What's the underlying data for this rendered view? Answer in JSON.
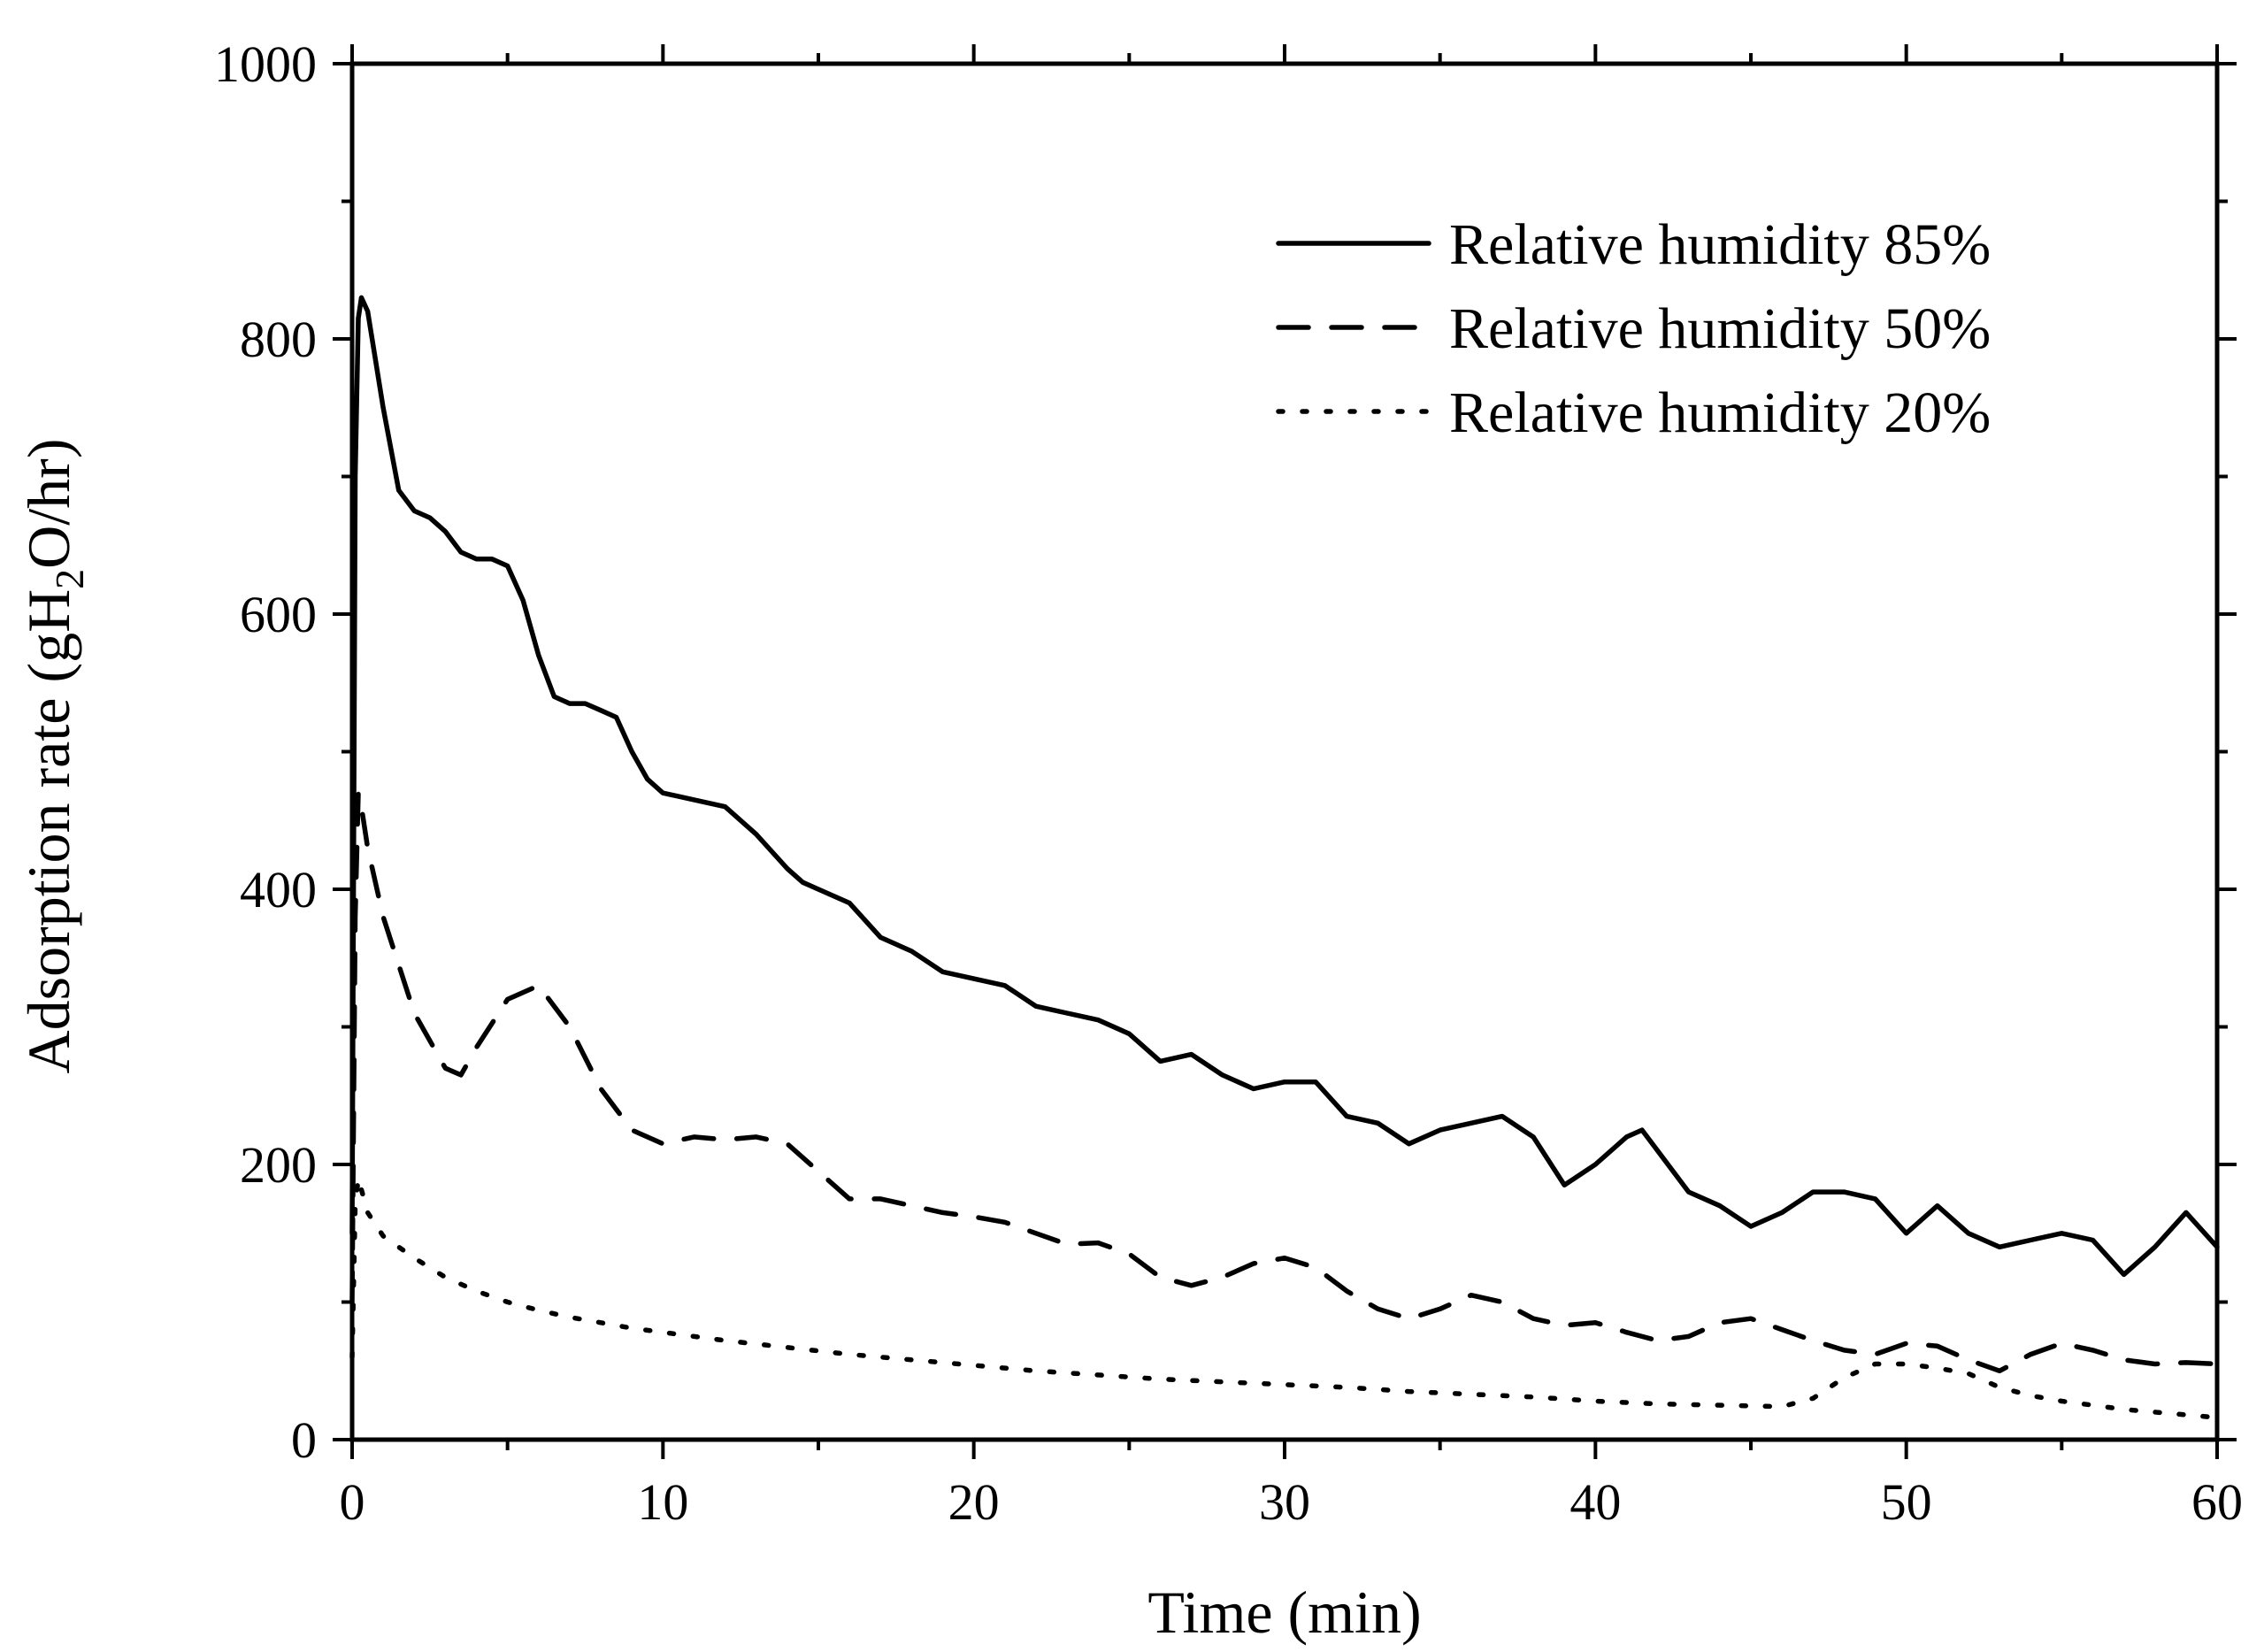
{
  "chart_data": {
    "type": "line",
    "title": "",
    "xlabel": "Time (min)",
    "ylabel": "Adsorption rate (gH2O/hr)",
    "ylabel_parts": {
      "prefix": "Adsorption rate (gH",
      "subscript": "2",
      "suffix": "O/hr)"
    },
    "xlim": [
      0,
      60
    ],
    "ylim": [
      0,
      1000
    ],
    "xticks": [
      0,
      10,
      20,
      30,
      40,
      50,
      60
    ],
    "yticks": [
      0,
      200,
      400,
      600,
      800,
      1000
    ],
    "xtick_labels": [
      "0",
      "10",
      "20",
      "30",
      "40",
      "50",
      "60"
    ],
    "ytick_labels": [
      "0",
      "200",
      "400",
      "600",
      "800",
      "1000"
    ],
    "grid": false,
    "legend_position": "top-right",
    "color": "#000000",
    "series": [
      {
        "name": "Relative humidity 85%",
        "style": "solid",
        "x": [
          0,
          0.1,
          0.2,
          0.3,
          0.5,
          1,
          1.5,
          2,
          2.5,
          3,
          3.5,
          4,
          4.5,
          5,
          5.5,
          6,
          6.5,
          7,
          7.5,
          8,
          8.5,
          9,
          9.5,
          10,
          11,
          12,
          13,
          14,
          14.5,
          15,
          16,
          17,
          18,
          19,
          20,
          21,
          22,
          23,
          24,
          25,
          26,
          27,
          28,
          29,
          30,
          31,
          32,
          33,
          34,
          35,
          36,
          37,
          38,
          39,
          40,
          41,
          41.5,
          42,
          43,
          44,
          45,
          46,
          47,
          48,
          49,
          50,
          51,
          52,
          53,
          54,
          55,
          56,
          57,
          58,
          59,
          60
        ],
        "values": [
          150,
          700,
          815,
          830,
          820,
          750,
          690,
          675,
          670,
          660,
          645,
          640,
          640,
          635,
          610,
          570,
          540,
          535,
          535,
          530,
          525,
          500,
          480,
          470,
          465,
          460,
          440,
          415,
          405,
          400,
          390,
          365,
          355,
          340,
          335,
          330,
          315,
          310,
          305,
          295,
          275,
          280,
          265,
          255,
          260,
          260,
          235,
          230,
          215,
          225,
          230,
          235,
          220,
          185,
          200,
          220,
          225,
          210,
          180,
          170,
          155,
          165,
          180,
          180,
          175,
          150,
          170,
          150,
          140,
          145,
          150,
          145,
          120,
          140,
          165,
          140
        ]
      },
      {
        "name": "Relative humidity 50%",
        "style": "dashed",
        "x": [
          0,
          0.1,
          0.2,
          0.3,
          0.5,
          1,
          2,
          3,
          3.5,
          4,
          5,
          6,
          7,
          8,
          9,
          10,
          11,
          12,
          13,
          14,
          15,
          16,
          17,
          18,
          19,
          20,
          21,
          22,
          23,
          24,
          25,
          26,
          27,
          28,
          29,
          30,
          31,
          32,
          33,
          34,
          35,
          36,
          37,
          38,
          39,
          40,
          41,
          42,
          43,
          44,
          45,
          46,
          47,
          48,
          49,
          50,
          51,
          52,
          53,
          54,
          55,
          56,
          57,
          58,
          59,
          60
        ],
        "values": [
          100,
          380,
          470,
          460,
          430,
          380,
          310,
          270,
          265,
          285,
          320,
          330,
          300,
          255,
          225,
          215,
          220,
          218,
          220,
          215,
          195,
          175,
          175,
          170,
          165,
          162,
          158,
          150,
          142,
          143,
          135,
          118,
          112,
          118,
          128,
          132,
          125,
          108,
          95,
          88,
          95,
          105,
          100,
          88,
          83,
          85,
          78,
          72,
          75,
          85,
          88,
          80,
          72,
          65,
          62,
          70,
          68,
          58,
          50,
          62,
          70,
          65,
          58,
          55,
          56,
          55
        ]
      },
      {
        "name": "Relative humidity 20%",
        "style": "dotted",
        "x": [
          0,
          0.1,
          0.2,
          0.5,
          1,
          2,
          3,
          4,
          5,
          6,
          7,
          8,
          9,
          10,
          12,
          14,
          16,
          18,
          20,
          22,
          24,
          26,
          28,
          30,
          32,
          34,
          36,
          38,
          40,
          42,
          44,
          46,
          47,
          48,
          49,
          50,
          51,
          52,
          53,
          54,
          55,
          56,
          57,
          58,
          59,
          60
        ],
        "values": [
          60,
          170,
          190,
          165,
          148,
          132,
          118,
          108,
          100,
          94,
          89,
          85,
          81,
          78,
          72,
          67,
          62,
          58,
          54,
          50,
          47,
          44,
          42,
          40,
          38,
          35,
          33,
          31,
          28,
          26,
          25,
          24,
          30,
          45,
          55,
          55,
          52,
          48,
          38,
          32,
          28,
          25,
          22,
          20,
          18,
          16
        ]
      }
    ]
  }
}
